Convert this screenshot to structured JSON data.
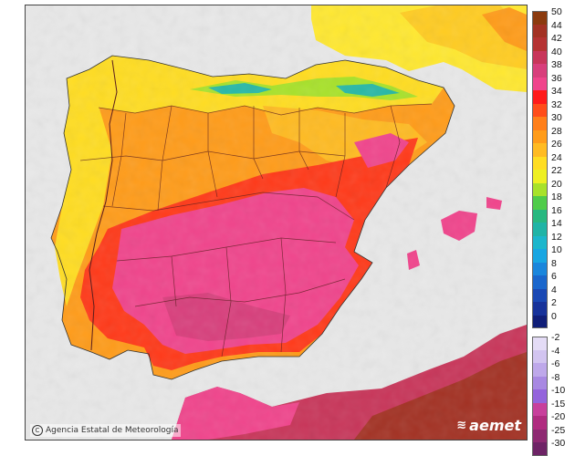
{
  "credit": {
    "icon": "copyright-icon",
    "text": "Agencia Estatal de Meteorología"
  },
  "brand": {
    "icon": "aemet-logo-icon",
    "text": "aemet"
  },
  "legend": {
    "positive": [
      {
        "label": "50",
        "color": "#8b3a0e"
      },
      {
        "label": "44",
        "color": "#a33224"
      },
      {
        "label": "42",
        "color": "#b53333"
      },
      {
        "label": "40",
        "color": "#c8365a"
      },
      {
        "label": "38",
        "color": "#d83f7c"
      },
      {
        "label": "36",
        "color": "#f0458c"
      },
      {
        "label": "34",
        "color": "#ff1a1a"
      },
      {
        "label": "32",
        "color": "#ff4d1a"
      },
      {
        "label": "30",
        "color": "#ff7f1a"
      },
      {
        "label": "28",
        "color": "#ff9c1a"
      },
      {
        "label": "26",
        "color": "#ffbb22"
      },
      {
        "label": "24",
        "color": "#ffdd22"
      },
      {
        "label": "22",
        "color": "#eef022"
      },
      {
        "label": "20",
        "color": "#a8e22a"
      },
      {
        "label": "18",
        "color": "#50cc4a"
      },
      {
        "label": "16",
        "color": "#28b880"
      },
      {
        "label": "14",
        "color": "#20b4a6"
      },
      {
        "label": "12",
        "color": "#1cb6cc"
      },
      {
        "label": "10",
        "color": "#18a6e2"
      },
      {
        "label": "8",
        "color": "#1a86dc"
      },
      {
        "label": "6",
        "color": "#1a66cc"
      },
      {
        "label": "4",
        "color": "#1a48b4"
      },
      {
        "label": "2",
        "color": "#17329a"
      },
      {
        "label": "0",
        "color": "#101e78"
      }
    ],
    "negative": [
      {
        "label": "-2",
        "color": "#e4dcf6"
      },
      {
        "label": "-4",
        "color": "#d2c4f0"
      },
      {
        "label": "-6",
        "color": "#bea8ea"
      },
      {
        "label": "-8",
        "color": "#a888e2"
      },
      {
        "label": "-10",
        "color": "#9464dc"
      },
      {
        "label": "-15",
        "color": "#c8409c"
      },
      {
        "label": "-20",
        "color": "#b02c80"
      },
      {
        "label": "-25",
        "color": "#8e2a72"
      },
      {
        "label": "-30",
        "color": "#6e2466"
      }
    ]
  }
}
